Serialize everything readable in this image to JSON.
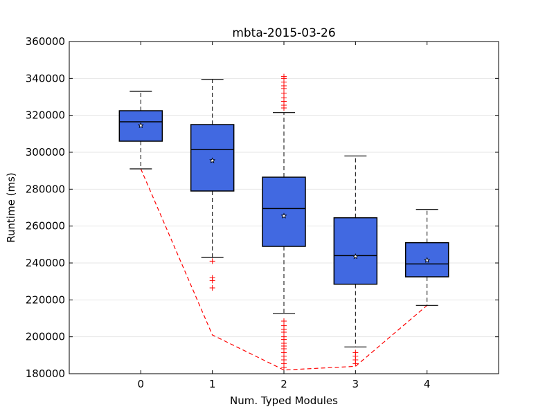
{
  "chart_data": {
    "type": "box",
    "title": "mbta-2015-03-26",
    "xlabel": "Num. Typed Modules",
    "ylabel": "Runtime (ms)",
    "ylim": [
      180000,
      360000
    ],
    "yticks": [
      180000,
      200000,
      220000,
      240000,
      260000,
      280000,
      300000,
      320000,
      340000,
      360000
    ],
    "categories": [
      "0",
      "1",
      "2",
      "3",
      "4"
    ],
    "grid": "horizontal",
    "legend": "none",
    "colors": {
      "box_fill": "#4169e1",
      "outlier": "#ff0000",
      "trend_line": "#ff0000",
      "mean_marker": "#ffffff"
    },
    "boxes": [
      {
        "category": "0",
        "whisker_low": 291000,
        "q1": 306000,
        "median": 316500,
        "q3": 322500,
        "whisker_high": 333000,
        "mean": 314500,
        "outliers": []
      },
      {
        "category": "1",
        "whisker_low": 243000,
        "q1": 279000,
        "median": 301500,
        "q3": 315000,
        "whisker_high": 339500,
        "mean": 295500,
        "outliers": [
          241000,
          232000,
          230500,
          226500
        ]
      },
      {
        "category": "2",
        "whisker_low": 212500,
        "q1": 249000,
        "median": 269500,
        "q3": 286500,
        "whisker_high": 321500,
        "mean": 265500,
        "outliers": [
          324000,
          325500,
          327500,
          329500,
          332000,
          334500,
          336000,
          338000,
          340000,
          341000,
          208500,
          206000,
          204000,
          202500,
          200000,
          198500,
          196500,
          195000,
          193500,
          191500,
          189500,
          187500,
          185500,
          183500
        ]
      },
      {
        "category": "3",
        "whisker_low": 194500,
        "q1": 228500,
        "median": 244000,
        "q3": 264500,
        "whisker_high": 298000,
        "mean": 243500,
        "outliers": [
          191500,
          189500,
          187500,
          185500
        ]
      },
      {
        "category": "4",
        "whisker_low": 217000,
        "q1": 232500,
        "median": 239500,
        "q3": 251000,
        "whisker_high": 269000,
        "mean": 241500,
        "outliers": []
      }
    ],
    "trend_line": [
      {
        "x": "0",
        "y": 291000
      },
      {
        "x": "1",
        "y": 201000
      },
      {
        "x": "2",
        "y": 182000
      },
      {
        "x": "3",
        "y": 184000
      },
      {
        "x": "4",
        "y": 217000
      }
    ]
  }
}
